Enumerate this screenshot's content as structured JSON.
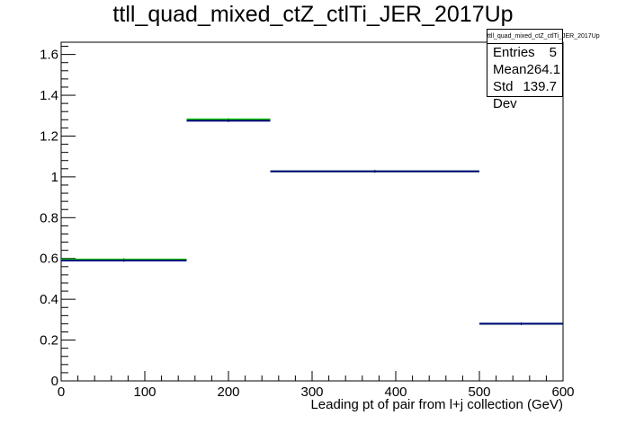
{
  "chart_data": {
    "type": "histogram",
    "title": "ttll_quad_mixed_ctZ_ctlTi_JER_2017Up",
    "xlabel": "Leading pt of pair from l+j collection (GeV)",
    "ylabel": "",
    "xlim": [
      0,
      600
    ],
    "ylim": [
      0,
      1.66
    ],
    "xticks": [
      0,
      100,
      200,
      300,
      400,
      500,
      600
    ],
    "yticks": [
      0,
      0.2,
      0.4,
      0.6,
      0.8,
      1,
      1.2,
      1.4,
      1.6
    ],
    "ytick_labels": [
      "0",
      "0.2",
      "0.4",
      "0.6",
      "0.8",
      "1",
      "1.2",
      "1.4",
      "1.6"
    ],
    "bin_edges": [
      0,
      150,
      250,
      500,
      600
    ],
    "series": [
      {
        "color": "#00cc00",
        "values": [
          0.595,
          1.282,
          1.027,
          0.28
        ]
      },
      {
        "color": "#000080",
        "values": [
          0.59,
          1.275,
          1.027,
          0.28
        ]
      }
    ],
    "grid": false,
    "legend": "none"
  },
  "stats": {
    "name": "ttll_quad_mixed_ctZ_ctlTi_JER_2017Up",
    "rows": [
      {
        "label": "Entries",
        "value": "5"
      },
      {
        "label": "Mean",
        "value": "264.1"
      },
      {
        "label": "Std Dev",
        "value": "139.7"
      }
    ]
  }
}
